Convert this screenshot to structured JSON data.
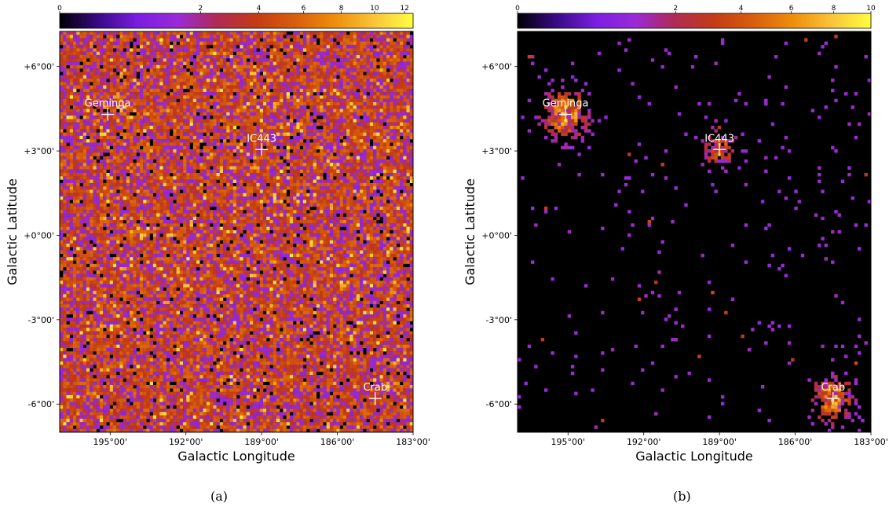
{
  "colors": {
    "colormap": [
      "#000000",
      "#3a0a87",
      "#7a1ee0",
      "#9a2ad8",
      "#b02a55",
      "#c43b16",
      "#d85e0c",
      "#ee8d0b",
      "#f9c43a",
      "#ffff40"
    ],
    "marker": "#ffffff",
    "axis": "#000000"
  },
  "chart_data": [
    {
      "type": "heatmap",
      "panel_label": "(a)",
      "xlabel": "Galactic Longitude",
      "ylabel": "Galactic Latitude",
      "xlim": [
        197,
        183
      ],
      "ylim": [
        -7,
        7.25
      ],
      "xticks": [
        195,
        192,
        189,
        186,
        183
      ],
      "xtick_labels": [
        "195°00'",
        "192°00'",
        "189°00'",
        "186°00'",
        "183°00'"
      ],
      "yticks": [
        6,
        3,
        0,
        -3,
        -6
      ],
      "ytick_labels": [
        "+6°00'",
        "+3°00'",
        "+0°00'",
        "-3°00'",
        "-6°00'"
      ],
      "colorbar": {
        "min": 0,
        "max": 12.6,
        "scale": "sqrt",
        "ticks": [
          0,
          2,
          4,
          6,
          8,
          10,
          12
        ],
        "tick_labels": [
          "0",
          "2",
          "4",
          "6",
          "8",
          "10",
          "12"
        ]
      },
      "background": "noise",
      "sources": [
        {
          "name": "Geminga",
          "l": 195.1,
          "b": 4.3,
          "size": 0
        },
        {
          "name": "IC443",
          "l": 189.0,
          "b": 3.05,
          "size": 0
        },
        {
          "name": "Crab",
          "l": 184.5,
          "b": -5.8,
          "size": 0
        }
      ]
    },
    {
      "type": "heatmap",
      "panel_label": "(b)",
      "xlabel": "Galactic Longitude",
      "ylabel": "Galactic Latitude",
      "xlim": [
        197,
        183
      ],
      "ylim": [
        -7,
        7.25
      ],
      "xticks": [
        195,
        192,
        189,
        186,
        183
      ],
      "xtick_labels": [
        "195°00'",
        "192°00'",
        "189°00'",
        "186°00'",
        "183°00'"
      ],
      "yticks": [
        6,
        3,
        0,
        -3,
        -6
      ],
      "ytick_labels": [
        "+6°00'",
        "+3°00'",
        "+0°00'",
        "-3°00'",
        "-6°00'"
      ],
      "colorbar": {
        "min": 0,
        "max": 10,
        "scale": "sqrt",
        "ticks": [
          0,
          2,
          4,
          6,
          8,
          10
        ],
        "tick_labels": [
          "0",
          "2",
          "4",
          "6",
          "8",
          "10"
        ]
      },
      "background": "sparse",
      "sources": [
        {
          "name": "Geminga",
          "l": 195.1,
          "b": 4.3,
          "size": 1.5
        },
        {
          "name": "IC443",
          "l": 189.0,
          "b": 3.05,
          "size": 0.9
        },
        {
          "name": "Crab",
          "l": 184.5,
          "b": -5.8,
          "size": 1.3
        }
      ]
    }
  ]
}
